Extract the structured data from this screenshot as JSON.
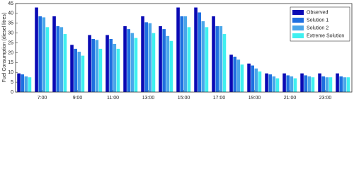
{
  "chart_data": {
    "type": "bar",
    "y_label": "Fuel Consumption (diesel litres)",
    "categories": [
      null,
      "7:00",
      null,
      "9:00",
      null,
      "11:00",
      null,
      "13:00",
      null,
      "15:00",
      null,
      "17:00",
      null,
      "19:00",
      null,
      "21:00",
      null,
      "23:00",
      null
    ],
    "series": [
      {
        "name": "Observed",
        "color": "#0a0ab4",
        "values": [
          9.5,
          43,
          38.5,
          24,
          29,
          29,
          33.5,
          38.5,
          33.5,
          43,
          43,
          38.5,
          19,
          14.5,
          9.5,
          9.5,
          9.5,
          9.5,
          9.5
        ]
      },
      {
        "name": "Solution 1",
        "color": "#1f6fe0",
        "values": [
          9,
          38.5,
          33.5,
          22,
          27,
          27,
          32,
          35.5,
          32,
          38.5,
          40.5,
          33.5,
          18,
          13.5,
          9,
          8.5,
          8.5,
          8,
          8
        ]
      },
      {
        "name": "Solution 2",
        "color": "#4aa6ea",
        "values": [
          8,
          38,
          33,
          20.5,
          26.5,
          24.5,
          30,
          35,
          28.5,
          38.5,
          36,
          33.5,
          16.5,
          12,
          8,
          8,
          8,
          7.5,
          7.5
        ]
      },
      {
        "name": "Extreme Solution",
        "color": "#3ff0f0",
        "values": [
          7.5,
          33,
          29.5,
          18.5,
          22,
          22,
          27.5,
          30,
          26,
          33,
          33,
          29.5,
          14,
          10.5,
          7,
          7,
          7.5,
          7.5,
          7.5
        ]
      }
    ],
    "ylim": [
      0,
      45
    ],
    "yticks": [
      0,
      5,
      10,
      15,
      20,
      25,
      30,
      35,
      40,
      45
    ],
    "legend": "top-right"
  }
}
